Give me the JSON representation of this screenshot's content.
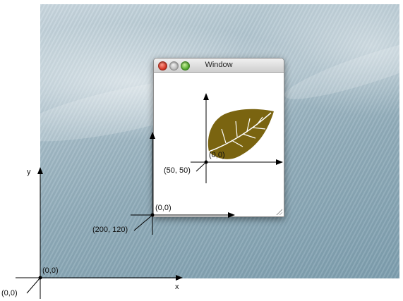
{
  "window": {
    "title": "Window"
  },
  "labels": {
    "screen_origin": "(0,0)",
    "screen_origin_callout": "(0,0)",
    "screen_x_axis": "x",
    "screen_y_axis": "y",
    "window_origin": "(0,0)",
    "window_origin_callout": "(200, 120)",
    "view_origin": "(0,0)",
    "view_origin_callout": "(50, 50)"
  },
  "icons": {
    "leaf": "leaf-icon"
  },
  "colors": {
    "leaf": "#7a6410",
    "axes": "#000000"
  }
}
